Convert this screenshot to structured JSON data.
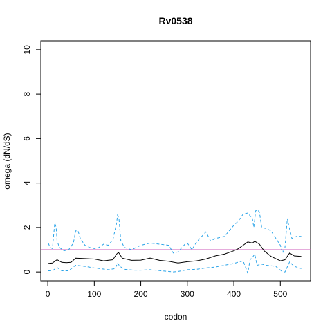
{
  "chart_data": {
    "type": "line",
    "title": "Rv0538",
    "xlabel": "codon",
    "ylabel": "omega (dN/dS)",
    "xlim": [
      -15,
      565
    ],
    "ylim": [
      -0.4,
      10.4
    ],
    "x_ticks": [
      0,
      100,
      200,
      300,
      400,
      500
    ],
    "y_ticks": [
      0,
      2,
      4,
      6,
      8,
      10
    ],
    "grid": false,
    "reference_line": {
      "y": 1,
      "color": "#cc5ab8"
    },
    "series": [
      {
        "style": "solid",
        "color": "#000000",
        "x": [
          1,
          10,
          20,
          30,
          40,
          50,
          60,
          80,
          100,
          120,
          140,
          148,
          152,
          160,
          180,
          200,
          220,
          240,
          260,
          280,
          300,
          320,
          340,
          360,
          380,
          400,
          410,
          420,
          430,
          440,
          445,
          455,
          465,
          480,
          500,
          510,
          520,
          530,
          545
        ],
        "y": [
          0.38,
          0.4,
          0.55,
          0.43,
          0.42,
          0.43,
          0.62,
          0.6,
          0.58,
          0.5,
          0.55,
          0.8,
          0.88,
          0.62,
          0.52,
          0.53,
          0.62,
          0.52,
          0.48,
          0.4,
          0.46,
          0.5,
          0.58,
          0.72,
          0.8,
          0.95,
          1.05,
          1.2,
          1.35,
          1.3,
          1.38,
          1.25,
          0.95,
          0.7,
          0.5,
          0.55,
          0.85,
          0.72,
          0.7
        ]
      },
      {
        "style": "dashed",
        "color": "#29a3e8",
        "x": [
          1,
          5,
          10,
          15,
          18,
          20,
          25,
          35,
          45,
          55,
          60,
          65,
          70,
          80,
          90,
          100,
          110,
          120,
          130,
          140,
          148,
          150,
          153,
          157,
          165,
          180,
          200,
          220,
          240,
          260,
          270,
          280,
          295,
          300,
          310,
          320,
          340,
          350,
          360,
          380,
          400,
          410,
          420,
          430,
          440,
          443,
          447,
          450,
          455,
          460,
          470,
          480,
          500,
          505,
          510,
          515,
          518,
          525,
          535,
          545
        ],
        "y": [
          1.3,
          1.1,
          1.05,
          2.2,
          2.0,
          1.4,
          1.1,
          0.95,
          1.0,
          1.3,
          1.85,
          1.85,
          1.5,
          1.2,
          1.1,
          1.05,
          1.1,
          1.25,
          1.2,
          1.45,
          2.2,
          2.55,
          2.4,
          1.4,
          1.1,
          1.0,
          1.2,
          1.3,
          1.25,
          1.2,
          0.85,
          0.9,
          1.25,
          1.3,
          1.0,
          1.35,
          1.8,
          1.4,
          1.5,
          1.6,
          2.1,
          2.3,
          2.6,
          2.65,
          2.4,
          2.0,
          2.75,
          2.8,
          2.7,
          2.0,
          1.95,
          1.85,
          1.2,
          0.85,
          1.1,
          2.4,
          2.1,
          1.5,
          1.6,
          1.6
        ]
      },
      {
        "style": "dashed",
        "color": "#29a3e8",
        "x": [
          1,
          10,
          20,
          30,
          45,
          60,
          80,
          100,
          130,
          145,
          150,
          155,
          165,
          185,
          200,
          220,
          240,
          270,
          280,
          300,
          320,
          340,
          360,
          380,
          400,
          420,
          430,
          435,
          440,
          445,
          450,
          460,
          470,
          490,
          505,
          510,
          520,
          530,
          545
        ],
        "y": [
          0.05,
          0.05,
          0.2,
          0.05,
          0.05,
          0.3,
          0.25,
          0.18,
          0.1,
          0.15,
          0.4,
          0.25,
          0.12,
          0.08,
          0.08,
          0.1,
          0.06,
          0.0,
          0.02,
          0.1,
          0.12,
          0.18,
          0.22,
          0.3,
          0.38,
          0.5,
          -0.05,
          0.55,
          0.65,
          0.8,
          0.3,
          0.35,
          0.3,
          0.25,
          0.0,
          0.0,
          0.45,
          0.25,
          0.15
        ]
      }
    ]
  }
}
